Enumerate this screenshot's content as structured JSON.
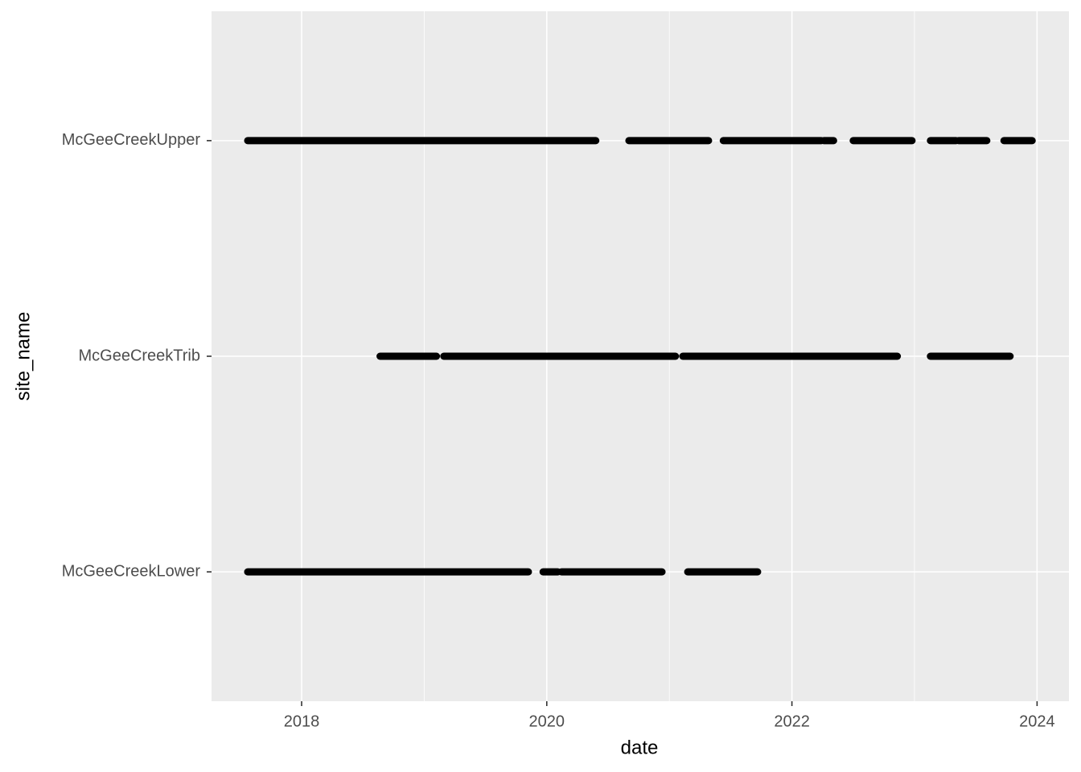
{
  "chart_data": {
    "type": "segment",
    "x_label": "date",
    "y_label": "site_name",
    "categories": [
      "McGeeCreekLower",
      "McGeeCreekTrib",
      "McGeeCreekUpper"
    ],
    "ranges": [
      [
        [
          2017.56,
          2019.85
        ],
        [
          2019.97,
          2020.09
        ],
        [
          2020.12,
          2020.94
        ],
        [
          2021.15,
          2021.72
        ]
      ],
      [
        [
          2018.64,
          2019.1
        ],
        [
          2019.16,
          2021.05
        ],
        [
          2021.11,
          2022.86
        ],
        [
          2023.13,
          2023.78
        ]
      ],
      [
        [
          2017.56,
          2020.4
        ],
        [
          2020.67,
          2021.32
        ],
        [
          2021.44,
          2022.24
        ],
        [
          2022.26,
          2022.34
        ],
        [
          2022.5,
          2022.98
        ],
        [
          2023.13,
          2023.34
        ],
        [
          2023.36,
          2023.59
        ],
        [
          2023.73,
          2023.96
        ]
      ]
    ],
    "color": "#000000",
    "xlim": [
      2017.265,
      2024.26
    ],
    "xticks": [
      2018,
      2020,
      2022,
      2024
    ],
    "xticks_minor": [
      2019,
      2021,
      2023
    ],
    "grid": true
  }
}
